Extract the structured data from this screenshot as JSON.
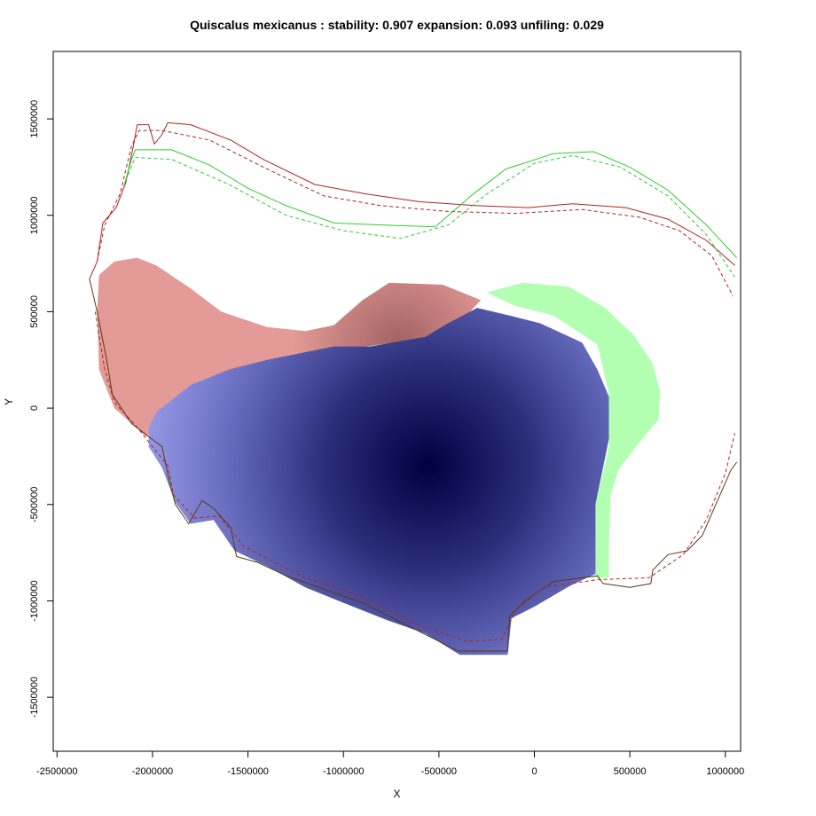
{
  "chart_data": {
    "type": "heatmap",
    "title": "Quiscalus mexicanus : stability: 0.907 expansion: 0.093 unfiling: 0.029",
    "xlabel": "X",
    "ylabel": "Y",
    "xlim": [
      -2520000,
      1080000
    ],
    "ylim": [
      -1780000,
      1850000
    ],
    "x_ticks": [
      {
        "v": -2500000,
        "label": "-2500000"
      },
      {
        "v": -2000000,
        "label": "-2000000"
      },
      {
        "v": -1500000,
        "label": "-1500000"
      },
      {
        "v": -1000000,
        "label": "-1000000"
      },
      {
        "v": -500000,
        "label": "-500000"
      },
      {
        "v": 0,
        "label": "0"
      },
      {
        "v": 500000,
        "label": "500000"
      },
      {
        "v": 1000000,
        "label": "1000000"
      }
    ],
    "y_ticks": [
      {
        "v": 1500000,
        "label": "1500000"
      },
      {
        "v": 1000000,
        "label": "1000000"
      },
      {
        "v": 500000,
        "label": "500000"
      },
      {
        "v": 0,
        "label": "0"
      },
      {
        "v": -500000,
        "label": "-500000"
      },
      {
        "v": -1000000,
        "label": "-1000000"
      },
      {
        "v": -1500000,
        "label": "-1500000"
      }
    ],
    "grid": false,
    "colors": {
      "stability": "#9b9ee8",
      "stability_core": "#000040",
      "expansion": "#b2ffb2",
      "unfilling": "#e49a96",
      "native_envelope": "#b22222",
      "invaded_envelope": "#2ecc2e"
    },
    "stability_core": {
      "x": -560000,
      "y": -300000
    },
    "regions": {
      "unfilling": [
        [
          -2290000,
          500000
        ],
        [
          -2280000,
          690000
        ],
        [
          -2200000,
          760000
        ],
        [
          -2080000,
          780000
        ],
        [
          -1980000,
          740000
        ],
        [
          -1800000,
          620000
        ],
        [
          -1640000,
          500000
        ],
        [
          -1400000,
          420000
        ],
        [
          -1200000,
          400000
        ],
        [
          -1050000,
          430000
        ],
        [
          -900000,
          560000
        ],
        [
          -760000,
          650000
        ],
        [
          -480000,
          640000
        ],
        [
          -280000,
          560000
        ],
        [
          -450000,
          380000
        ],
        [
          -880000,
          320000
        ],
        [
          -1250000,
          260000
        ],
        [
          -1480000,
          200000
        ],
        [
          -1700000,
          120000
        ],
        [
          -1960000,
          -20000
        ],
        [
          -2030000,
          -150000
        ],
        [
          -2200000,
          0
        ],
        [
          -2280000,
          200000
        ]
      ],
      "expansion": [
        [
          -250000,
          600000
        ],
        [
          -60000,
          650000
        ],
        [
          180000,
          630000
        ],
        [
          370000,
          520000
        ],
        [
          520000,
          380000
        ],
        [
          620000,
          230000
        ],
        [
          660000,
          80000
        ],
        [
          650000,
          -60000
        ],
        [
          540000,
          -190000
        ],
        [
          440000,
          -320000
        ],
        [
          400000,
          -450000
        ],
        [
          390000,
          -700000
        ],
        [
          390000,
          -880000
        ],
        [
          320000,
          -880000
        ],
        [
          320000,
          -500000
        ],
        [
          390000,
          -200000
        ],
        [
          390000,
          80000
        ],
        [
          330000,
          330000
        ],
        [
          100000,
          480000
        ],
        [
          -100000,
          530000
        ]
      ],
      "stability": [
        [
          -1980000,
          -20000
        ],
        [
          -1800000,
          120000
        ],
        [
          -1600000,
          200000
        ],
        [
          -1400000,
          250000
        ],
        [
          -1050000,
          320000
        ],
        [
          -860000,
          320000
        ],
        [
          -570000,
          370000
        ],
        [
          -470000,
          430000
        ],
        [
          -300000,
          520000
        ],
        [
          -130000,
          480000
        ],
        [
          30000,
          440000
        ],
        [
          250000,
          340000
        ],
        [
          330000,
          200000
        ],
        [
          390000,
          60000
        ],
        [
          390000,
          -160000
        ],
        [
          320000,
          -500000
        ],
        [
          320000,
          -860000
        ],
        [
          190000,
          -920000
        ],
        [
          0,
          -1030000
        ],
        [
          -120000,
          -1090000
        ],
        [
          -140000,
          -1280000
        ],
        [
          -390000,
          -1280000
        ],
        [
          -570000,
          -1170000
        ],
        [
          -770000,
          -1100000
        ],
        [
          -1000000,
          -1010000
        ],
        [
          -1200000,
          -930000
        ],
        [
          -1400000,
          -820000
        ],
        [
          -1570000,
          -740000
        ],
        [
          -1680000,
          -580000
        ],
        [
          -1800000,
          -600000
        ],
        [
          -1880000,
          -490000
        ],
        [
          -1950000,
          -310000
        ],
        [
          -2020000,
          -200000
        ],
        [
          -2020000,
          -100000
        ]
      ]
    },
    "envelopes": {
      "native_solid": [
        [
          -2330000,
          670000
        ],
        [
          -2290000,
          760000
        ],
        [
          -2260000,
          960000
        ],
        [
          -2190000,
          1040000
        ],
        [
          -2140000,
          1170000
        ],
        [
          -2100000,
          1360000
        ],
        [
          -2080000,
          1470000
        ],
        [
          -2020000,
          1470000
        ],
        [
          -1990000,
          1370000
        ],
        [
          -1950000,
          1420000
        ],
        [
          -1920000,
          1480000
        ],
        [
          -1800000,
          1470000
        ],
        [
          -1590000,
          1390000
        ],
        [
          -1420000,
          1290000
        ],
        [
          -1150000,
          1160000
        ],
        [
          -880000,
          1110000
        ],
        [
          -600000,
          1070000
        ],
        [
          -300000,
          1050000
        ],
        [
          -30000,
          1040000
        ],
        [
          200000,
          1060000
        ],
        [
          480000,
          1040000
        ],
        [
          700000,
          980000
        ],
        [
          900000,
          870000
        ],
        [
          1050000,
          740000
        ]
      ],
      "native_dashed": [
        [
          -2290000,
          760000
        ],
        [
          -2250000,
          950000
        ],
        [
          -2170000,
          1110000
        ],
        [
          -2110000,
          1360000
        ],
        [
          -2070000,
          1440000
        ],
        [
          -1950000,
          1440000
        ],
        [
          -1700000,
          1390000
        ],
        [
          -1400000,
          1240000
        ],
        [
          -1100000,
          1100000
        ],
        [
          -800000,
          1050000
        ],
        [
          -450000,
          1020000
        ],
        [
          -100000,
          1010000
        ],
        [
          250000,
          1030000
        ],
        [
          550000,
          990000
        ],
        [
          760000,
          920000
        ],
        [
          930000,
          790000
        ],
        [
          1040000,
          580000
        ]
      ],
      "invaded_solid": [
        [
          -2150000,
          1150000
        ],
        [
          -2110000,
          1290000
        ],
        [
          -2090000,
          1340000
        ],
        [
          -1900000,
          1340000
        ],
        [
          -1700000,
          1260000
        ],
        [
          -1500000,
          1140000
        ],
        [
          -1300000,
          1050000
        ],
        [
          -1050000,
          960000
        ],
        [
          -800000,
          950000
        ],
        [
          -520000,
          940000
        ],
        [
          -320000,
          1110000
        ],
        [
          -150000,
          1240000
        ],
        [
          100000,
          1320000
        ],
        [
          310000,
          1330000
        ],
        [
          500000,
          1250000
        ],
        [
          700000,
          1130000
        ],
        [
          900000,
          950000
        ],
        [
          1060000,
          780000
        ]
      ],
      "invaded_dashed": [
        [
          -2140000,
          1180000
        ],
        [
          -2090000,
          1300000
        ],
        [
          -1900000,
          1290000
        ],
        [
          -1600000,
          1160000
        ],
        [
          -1300000,
          1000000
        ],
        [
          -1000000,
          920000
        ],
        [
          -700000,
          880000
        ],
        [
          -450000,
          950000
        ],
        [
          -250000,
          1110000
        ],
        [
          0,
          1270000
        ],
        [
          200000,
          1310000
        ],
        [
          450000,
          1250000
        ],
        [
          700000,
          1100000
        ],
        [
          900000,
          900000
        ],
        [
          1050000,
          680000
        ]
      ],
      "southern_boundary": [
        [
          -2330000,
          670000
        ],
        [
          -2290000,
          500000
        ],
        [
          -2240000,
          250000
        ],
        [
          -2210000,
          70000
        ],
        [
          -2110000,
          -80000
        ],
        [
          -1950000,
          -200000
        ],
        [
          -1910000,
          -390000
        ],
        [
          -1880000,
          -500000
        ],
        [
          -1810000,
          -600000
        ],
        [
          -1740000,
          -480000
        ],
        [
          -1680000,
          -520000
        ],
        [
          -1590000,
          -620000
        ],
        [
          -1560000,
          -770000
        ],
        [
          -1450000,
          -800000
        ],
        [
          -1300000,
          -870000
        ],
        [
          -1100000,
          -940000
        ],
        [
          -900000,
          -1010000
        ],
        [
          -700000,
          -1110000
        ],
        [
          -500000,
          -1210000
        ],
        [
          -400000,
          -1260000
        ],
        [
          -140000,
          -1260000
        ],
        [
          -130000,
          -1080000
        ],
        [
          -50000,
          -1000000
        ],
        [
          100000,
          -900000
        ],
        [
          330000,
          -870000
        ],
        [
          360000,
          -910000
        ],
        [
          500000,
          -930000
        ],
        [
          610000,
          -910000
        ],
        [
          620000,
          -840000
        ],
        [
          700000,
          -760000
        ],
        [
          800000,
          -740000
        ],
        [
          880000,
          -660000
        ],
        [
          950000,
          -500000
        ],
        [
          1030000,
          -320000
        ],
        [
          1060000,
          -280000
        ]
      ],
      "southern_dashed": [
        [
          -2300000,
          500000
        ],
        [
          -2250000,
          200000
        ],
        [
          -2200000,
          30000
        ],
        [
          -2080000,
          -100000
        ],
        [
          -1920000,
          -300000
        ],
        [
          -1890000,
          -450000
        ],
        [
          -1780000,
          -570000
        ],
        [
          -1650000,
          -560000
        ],
        [
          -1520000,
          -720000
        ],
        [
          -1200000,
          -880000
        ],
        [
          -900000,
          -980000
        ],
        [
          -600000,
          -1130000
        ],
        [
          -350000,
          -1210000
        ],
        [
          -170000,
          -1200000
        ],
        [
          -100000,
          -1050000
        ],
        [
          50000,
          -930000
        ],
        [
          330000,
          -890000
        ],
        [
          600000,
          -880000
        ],
        [
          780000,
          -760000
        ],
        [
          900000,
          -580000
        ],
        [
          1000000,
          -340000
        ],
        [
          1050000,
          -130000
        ]
      ]
    }
  }
}
